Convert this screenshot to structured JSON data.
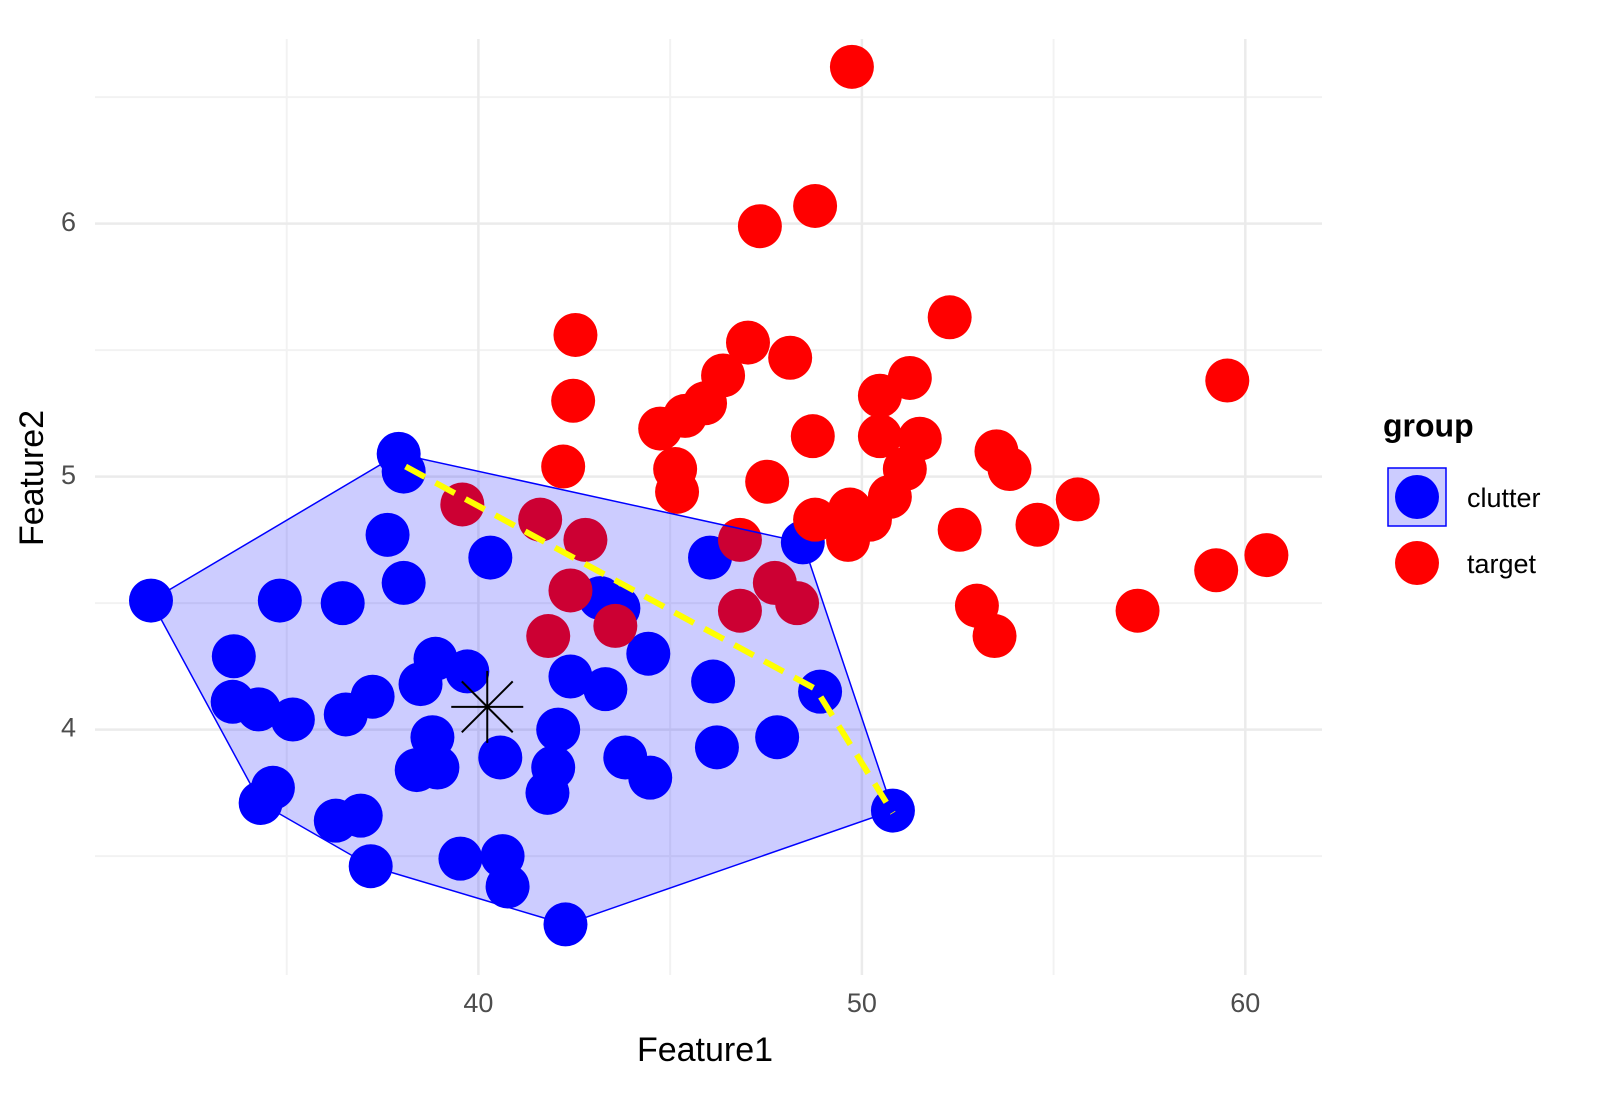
{
  "chart_data": {
    "type": "scatter",
    "x_label": "Feature1",
    "y_label": "Feature2",
    "legend_title": "group",
    "legend_position": "right",
    "grid": true,
    "xlim": [
      30,
      62
    ],
    "ylim": [
      3.03,
      6.73
    ],
    "xticks": [
      40,
      50,
      60
    ],
    "yticks": [
      4,
      5,
      6
    ],
    "x_minor_grid": [
      35,
      45,
      55
    ],
    "y_minor_grid": [
      3.5,
      4.5,
      5.5,
      6.5
    ],
    "series": [
      {
        "name": "clutter",
        "color": "#0000ff",
        "hull": true,
        "hull_fill": "rgba(0,0,255,0.2)",
        "x": [
          31.46,
          37.92,
          38.05,
          37.63,
          38.05,
          34.82,
          36.46,
          40.31,
          33.62,
          33.59,
          34.27,
          35.16,
          36.54,
          37.24,
          38.88,
          38.49,
          39.71,
          38.8,
          38.39,
          38.93,
          40.57,
          34.32,
          34.64,
          36.28,
          36.93,
          37.19,
          39.53,
          40.63,
          40.76,
          42.27,
          42.08,
          41.95,
          41.8,
          42.4,
          43.31,
          43.18,
          43.65,
          44.43,
          43.83,
          44.48,
          46.04,
          46.12,
          46.22,
          47.79,
          48.91,
          48.46,
          50.81
        ],
        "values": [
          4.51,
          5.09,
          5.02,
          4.77,
          4.58,
          4.51,
          4.5,
          4.68,
          4.29,
          4.11,
          4.08,
          4.04,
          4.06,
          4.13,
          4.28,
          4.18,
          4.23,
          3.97,
          3.84,
          3.85,
          3.89,
          3.71,
          3.77,
          3.64,
          3.66,
          3.46,
          3.49,
          3.5,
          3.38,
          3.23,
          4.0,
          3.85,
          3.75,
          4.21,
          4.16,
          4.52,
          4.48,
          4.3,
          3.89,
          3.81,
          4.68,
          4.19,
          3.93,
          3.97,
          4.15,
          4.74,
          3.68
        ]
      },
      {
        "name": "target",
        "color": "#ff0000",
        "x": [
          49.74,
          48.78,
          47.34,
          52.29,
          42.53,
          47.03,
          48.13,
          42.47,
          46.38,
          45.91,
          45.39,
          44.74,
          45.13,
          45.18,
          42.21,
          47.53,
          48.72,
          50.47,
          51.25,
          50.47,
          51.51,
          51.12,
          50.73,
          50.21,
          49.69,
          48.78,
          49.64,
          52.55,
          53.51,
          53.85,
          54.58,
          55.63,
          53.0,
          53.46,
          57.19,
          59.24,
          59.53,
          60.55,
          39.58,
          41.61,
          42.79,
          42.4,
          41.82,
          43.57,
          46.82,
          46.82,
          47.73,
          48.31
        ],
        "values": [
          6.62,
          6.07,
          5.99,
          5.63,
          5.56,
          5.53,
          5.47,
          5.3,
          5.4,
          5.29,
          5.24,
          5.19,
          5.03,
          4.94,
          5.04,
          4.98,
          5.16,
          5.32,
          5.39,
          5.16,
          5.15,
          5.03,
          4.92,
          4.83,
          4.87,
          4.83,
          4.75,
          4.79,
          5.1,
          5.03,
          4.81,
          4.91,
          4.49,
          4.37,
          4.47,
          4.63,
          5.38,
          4.69,
          4.89,
          4.83,
          4.75,
          4.55,
          4.37,
          4.41,
          4.75,
          4.47,
          4.58,
          4.5
        ]
      }
    ],
    "boundary_line": {
      "color": "#ffff00",
      "x": [
        38.1,
        48.8,
        50.81
      ],
      "values": [
        5.04,
        4.16,
        3.67
      ]
    },
    "centroid": {
      "color": "#000000",
      "x": 40.23,
      "y": 4.09
    }
  }
}
